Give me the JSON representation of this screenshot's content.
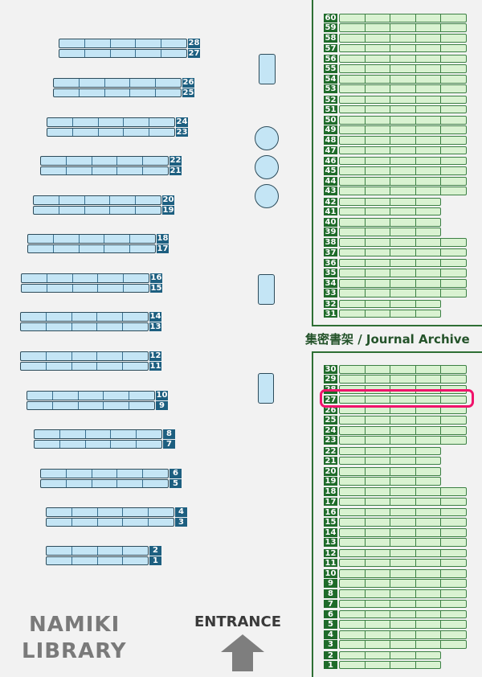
{
  "library_name": [
    "NAMIKI",
    "LIBRARY"
  ],
  "entrance_label": "ENTRANCE",
  "archive_title": "集密書架 / Journal Archive",
  "highlighted_shelf": {
    "area": "journal",
    "number": "27",
    "color": "#f0136b"
  },
  "colors": {
    "general_shelf": "#c4e5f5",
    "general_label": "#1d5f80",
    "journal_shelf": "#d9f2d1",
    "journal_label": "#1f6b2a"
  },
  "general_shelves": [
    {
      "numbers": [
        "28",
        "27"
      ],
      "cells": 5
    },
    {
      "numbers": [
        "26",
        "25"
      ],
      "cells": 5
    },
    {
      "numbers": [
        "24",
        "23"
      ],
      "cells": 5
    },
    {
      "numbers": [
        "22",
        "21"
      ],
      "cells": 5
    },
    {
      "numbers": [
        "20",
        "19"
      ],
      "cells": 5
    },
    {
      "numbers": [
        "18",
        "17"
      ],
      "cells": 5
    },
    {
      "numbers": [
        "16",
        "15"
      ],
      "cells": 5
    },
    {
      "numbers": [
        "14",
        "13"
      ],
      "cells": 5
    },
    {
      "numbers": [
        "12",
        "11"
      ],
      "cells": 5
    },
    {
      "numbers": [
        "10",
        "9"
      ],
      "cells": 5
    },
    {
      "numbers": [
        "8",
        "7"
      ],
      "cells": 5
    },
    {
      "numbers": [
        "6",
        "5"
      ],
      "cells": 5
    },
    {
      "numbers": [
        "4",
        "3"
      ],
      "cells": 5
    },
    {
      "numbers": [
        "2",
        "1"
      ],
      "cells": 4
    }
  ],
  "journal_shelves_upper": [
    {
      "numbers": [
        "60",
        "59"
      ],
      "cells": 5
    },
    {
      "numbers": [
        "58",
        "57"
      ],
      "cells": 5
    },
    {
      "numbers": [
        "56",
        "55"
      ],
      "cells": 5
    },
    {
      "numbers": [
        "54",
        "53"
      ],
      "cells": 5
    },
    {
      "numbers": [
        "52",
        "51"
      ],
      "cells": 5
    },
    {
      "numbers": [
        "50",
        "49"
      ],
      "cells": 5
    },
    {
      "numbers": [
        "48",
        "47"
      ],
      "cells": 5
    },
    {
      "numbers": [
        "46",
        "45"
      ],
      "cells": 5
    },
    {
      "numbers": [
        "44",
        "43"
      ],
      "cells": 5
    },
    {
      "numbers": [
        "42",
        "41"
      ],
      "cells": 4
    },
    {
      "numbers": [
        "40",
        "39"
      ],
      "cells": 4
    },
    {
      "numbers": [
        "38",
        "37"
      ],
      "cells": 5
    },
    {
      "numbers": [
        "36",
        "35"
      ],
      "cells": 5
    },
    {
      "numbers": [
        "34",
        "33"
      ],
      "cells": 5
    },
    {
      "numbers": [
        "32",
        "31"
      ],
      "cells": 4
    }
  ],
  "journal_shelves_lower": [
    {
      "numbers": [
        "30",
        "29"
      ],
      "cells": 5
    },
    {
      "numbers": [
        "28",
        "27"
      ],
      "cells": 5
    },
    {
      "numbers": [
        "26",
        "25"
      ],
      "cells": 5
    },
    {
      "numbers": [
        "24",
        "23"
      ],
      "cells": 5
    },
    {
      "numbers": [
        "22",
        "21"
      ],
      "cells": 4
    },
    {
      "numbers": [
        "20",
        "19"
      ],
      "cells": 4
    },
    {
      "numbers": [
        "18",
        "17"
      ],
      "cells": 5
    },
    {
      "numbers": [
        "16",
        "15"
      ],
      "cells": 5
    },
    {
      "numbers": [
        "14",
        "13"
      ],
      "cells": 5
    },
    {
      "numbers": [
        "12",
        "11"
      ],
      "cells": 5
    },
    {
      "numbers": [
        "10",
        "9"
      ],
      "cells": 5
    },
    {
      "numbers": [
        "8",
        "7"
      ],
      "cells": 5
    },
    {
      "numbers": [
        "6",
        "5"
      ],
      "cells": 5
    },
    {
      "numbers": [
        "4",
        "3"
      ],
      "cells": 5
    },
    {
      "numbers": [
        "2",
        "1"
      ],
      "cells": 4
    }
  ]
}
